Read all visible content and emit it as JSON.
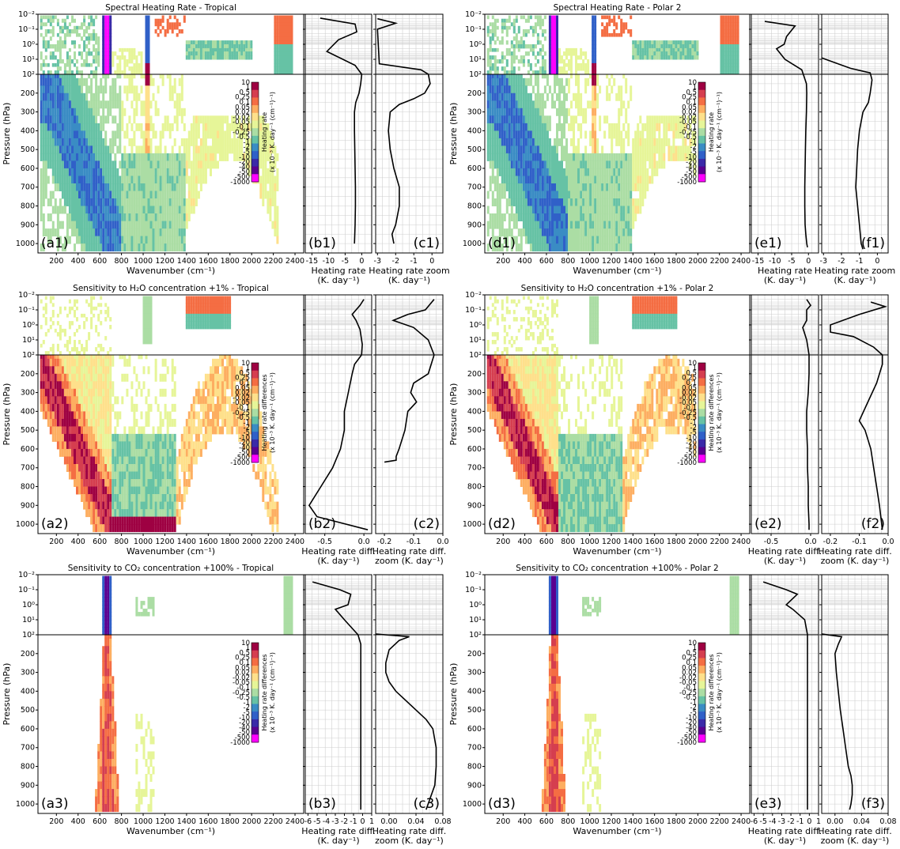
{
  "colormap": [
    "#ff00ff",
    "#5a0090",
    "#3a2aa8",
    "#3060c8",
    "#3a8cc4",
    "#66c2a5",
    "#abdda4",
    "#e6f598",
    "#fee08b",
    "#fdae61",
    "#f46d43",
    "#d53e4f",
    "#9e0142"
  ],
  "colorbar_ticks": [
    "10",
    "1",
    "0.5",
    "0.25",
    "0.1",
    "0.05",
    "0.02",
    "-0.02",
    "-0.05",
    "-0.1",
    "-0.25",
    "-0.5",
    "-1",
    "-2",
    "-5",
    "-10",
    "-20",
    "-40",
    "-50",
    "-500",
    "-1000"
  ],
  "colorbar_labels": {
    "heating": [
      "Heating rate",
      "(x 10⁻³ K. day⁻¹ (cm⁻¹)⁻¹)"
    ],
    "diff": [
      "Heating rate differences",
      "(x 10⁻³ K. day⁻¹ (cm⁻¹)⁻¹)"
    ]
  },
  "common": {
    "ylabel": "Pressure (hPa)",
    "xlabel": "Wavenumber (cm⁻¹)",
    "pressure_ticks_top": [
      "10⁻²",
      "10⁻¹",
      "10⁰",
      "10¹",
      "10²"
    ],
    "pressure_ticks_bottom": [
      "200",
      "300",
      "400",
      "500",
      "600",
      "700",
      "800",
      "900",
      "1000"
    ],
    "wavenumber_ticks": [
      "200",
      "400",
      "600",
      "800",
      "1000",
      "1200",
      "1400",
      "1600",
      "1800",
      "2000",
      "2200",
      "2400"
    ]
  },
  "chart_data": [
    {
      "type": "heatmap",
      "panel": "a1",
      "title": "Spectral Heating Rate - Tropical",
      "colorbar": "heating",
      "case": "tropical",
      "variant": "base"
    },
    {
      "type": "heatmap",
      "panel": "d1",
      "title": "Spectral Heating Rate - Polar 2",
      "colorbar": "heating",
      "case": "polar",
      "variant": "base"
    },
    {
      "type": "heatmap",
      "panel": "a2",
      "title": "Sensitivity to H₂O concentration +1% - Tropical",
      "colorbar": "diff",
      "case": "tropical",
      "variant": "h2o"
    },
    {
      "type": "heatmap",
      "panel": "d2",
      "title": "Sensitivity to H₂O concentration +1% - Polar 2",
      "colorbar": "diff",
      "case": "polar",
      "variant": "h2o"
    },
    {
      "type": "heatmap",
      "panel": "a3",
      "title": "Sensitivity to CO₂ concentration +100% - Tropical",
      "colorbar": "diff",
      "case": "tropical",
      "variant": "co2"
    },
    {
      "type": "heatmap",
      "panel": "d3",
      "title": "Sensitivity to CO₂ concentration +100% - Polar 2",
      "colorbar": "diff",
      "case": "polar",
      "variant": "co2"
    },
    {
      "type": "line",
      "panel": "b1",
      "xlabel": [
        "Heating rate",
        "(K. day⁻¹)"
      ],
      "xticks": [
        "-15",
        "-10",
        "-5",
        "0"
      ],
      "xlim": [
        -17,
        3
      ],
      "x": [
        -12.5,
        -2,
        -1.5,
        -7,
        -10.5,
        -2,
        0,
        -0.3,
        -0.8,
        -1.8,
        -2.2,
        -2.2,
        -2.1,
        -2.0,
        -1.9,
        -1.9,
        -2.0,
        -2.2
      ],
      "y": [
        0.018,
        0.045,
        0.15,
        0.5,
        3,
        25,
        100,
        150,
        200,
        250,
        300,
        400,
        500,
        600,
        700,
        800,
        900,
        1000
      ]
    },
    {
      "type": "line",
      "panel": "c1",
      "xlabel": [
        "Heating rate zoom",
        "(K. day⁻¹)"
      ],
      "xticks": [
        "-3",
        "-2",
        "-1",
        "0"
      ],
      "xlim": [
        -3.1,
        0.6
      ],
      "x": [
        -3.0,
        -2.0,
        -3.0,
        -2.9,
        -0.6,
        -0.2,
        -0.1,
        -0.4,
        -1.0,
        -1.8,
        -2.3,
        -2.4,
        -2.3,
        -2.1,
        -1.8,
        -1.8,
        -2.0,
        -2.2,
        -2.1
      ],
      "y": [
        0.02,
        0.04,
        0.1,
        20,
        50,
        100,
        150,
        200,
        230,
        260,
        300,
        400,
        500,
        600,
        700,
        800,
        900,
        950,
        1000
      ]
    },
    {
      "type": "line",
      "panel": "e1",
      "xlabel": [
        "Heating rate",
        "(K. day⁻¹)"
      ],
      "xticks": [
        "-15",
        "-10",
        "-5",
        "0"
      ],
      "xlim": [
        -17,
        3
      ],
      "x": [
        -13,
        -4,
        -6.5,
        -7.2,
        -9.5,
        -7,
        -2,
        -0.6,
        -0.5,
        -0.6,
        -0.8,
        -0.9,
        -1.0,
        -1.1,
        -1.1,
        -1.0,
        -0.8,
        -0.5,
        -0.3
      ],
      "y": [
        0.03,
        0.06,
        0.3,
        1,
        2,
        10,
        50,
        150,
        200,
        300,
        400,
        500,
        600,
        700,
        800,
        900,
        950,
        1000,
        1020
      ]
    },
    {
      "type": "line",
      "panel": "f1",
      "xlabel": [
        "Heating rate zoom",
        "(K. day⁻¹)"
      ],
      "xticks": [
        "-3",
        "-2",
        "-1",
        "0"
      ],
      "xlim": [
        -3.1,
        0.6
      ],
      "x": [
        -3.1,
        -1.5,
        -0.4,
        -0.3,
        -0.4,
        -0.5,
        -0.8,
        -1.0,
        -1.1,
        -1.15,
        -1.2,
        -1.1,
        -1.0,
        -0.9,
        -0.8
      ],
      "y": [
        8,
        40,
        80,
        130,
        200,
        250,
        300,
        400,
        500,
        600,
        700,
        800,
        900,
        1000,
        1030
      ]
    },
    {
      "type": "line",
      "panel": "b2",
      "xlabel": [
        "Heating rate diff.",
        "(K. day⁻¹)"
      ],
      "xticks": [
        "-0.5",
        "0.0"
      ],
      "xlim": [
        -0.75,
        0.1
      ],
      "x": [
        0.0,
        -0.05,
        -0.15,
        -0.1,
        -0.05,
        -0.02,
        -0.03,
        -0.12,
        -0.15,
        -0.2,
        -0.25,
        -0.25,
        -0.3,
        -0.4,
        -0.55,
        -0.7,
        -0.6,
        0.05
      ],
      "y": [
        0.02,
        0.05,
        0.2,
        0.5,
        2,
        20,
        100,
        150,
        200,
        300,
        400,
        500,
        600,
        700,
        800,
        900,
        960,
        1030
      ]
    },
    {
      "type": "line",
      "panel": "c2",
      "xlabel": [
        "Heating rate diff.",
        "zoom (K. day⁻¹)"
      ],
      "xticks": [
        "-0.2",
        "-0.1",
        "0.0"
      ],
      "xlim": [
        -0.23,
        0.0
      ],
      "x": [
        -0.03,
        -0.06,
        -0.12,
        -0.17,
        -0.1,
        -0.05,
        -0.03,
        -0.05,
        -0.1,
        -0.11,
        -0.09,
        -0.12,
        -0.13,
        -0.15,
        -0.16,
        -0.16,
        -0.2
      ],
      "y": [
        0.02,
        0.1,
        0.2,
        0.5,
        1.5,
        10,
        100,
        200,
        250,
        300,
        350,
        400,
        500,
        600,
        640,
        660,
        670
      ]
    },
    {
      "type": "line",
      "panel": "e2",
      "xlabel": [
        "Heating rate diff.",
        "(K. day⁻¹)"
      ],
      "xticks": [
        "-0.5",
        "0.0"
      ],
      "xlim": [
        -0.75,
        0.1
      ],
      "x": [
        -0.05,
        0.0,
        -0.05,
        -0.05,
        -0.1,
        -0.05,
        -0.02,
        -0.02,
        -0.03,
        -0.05,
        -0.05,
        -0.04,
        -0.04,
        -0.03,
        -0.03,
        -0.02,
        -0.02
      ],
      "y": [
        0.02,
        0.05,
        0.1,
        0.5,
        1.5,
        10,
        100,
        200,
        300,
        400,
        500,
        600,
        700,
        800,
        900,
        1000,
        1030
      ]
    },
    {
      "type": "line",
      "panel": "f2",
      "xlabel": [
        "Heating rate diff.",
        "zoom (K. day⁻¹)"
      ],
      "xticks": [
        "-0.2",
        "-0.1",
        "0.0"
      ],
      "xlim": [
        -0.23,
        0.0
      ],
      "x": [
        -0.06,
        -0.01,
        -0.1,
        -0.2,
        -0.2,
        -0.12,
        -0.05,
        -0.02,
        -0.02,
        -0.04,
        -0.07,
        -0.1,
        -0.08,
        -0.06,
        -0.05,
        -0.04,
        -0.03,
        -0.02
      ],
      "y": [
        0.03,
        0.06,
        0.2,
        1,
        3,
        6,
        30,
        100,
        150,
        250,
        350,
        450,
        500,
        600,
        700,
        800,
        900,
        1030
      ]
    },
    {
      "type": "line",
      "panel": "b3",
      "xlabel": [
        "Heating rate diff.",
        "(K. day⁻¹)"
      ],
      "xticks": [
        "-6",
        "-5",
        "-4",
        "-3",
        "-2",
        "-1",
        "0",
        "1"
      ],
      "xlim": [
        -6.3,
        1.0
      ],
      "x": [
        -5.5,
        -2.5,
        -1.3,
        -1.6,
        -3.0,
        -2.0,
        -0.5,
        -0.2,
        -0.2,
        -0.2,
        -0.2,
        -0.2,
        -0.2,
        -0.2,
        -0.2,
        -0.2
      ],
      "y": [
        0.03,
        0.1,
        0.2,
        1,
        2,
        10,
        100,
        150,
        300,
        400,
        500,
        600,
        700,
        800,
        900,
        1030
      ]
    },
    {
      "type": "line",
      "panel": "c3",
      "xlabel": [
        "Heating rate diff.",
        "zoom (K. day⁻¹)"
      ],
      "xticks": [
        "0.00",
        "0.04",
        "0.08"
      ],
      "xlim": [
        -0.02,
        0.08
      ],
      "x": [
        -0.02,
        0.03,
        0.015,
        0.0,
        -0.005,
        -0.005,
        0.0,
        0.01,
        0.025,
        0.04,
        0.055,
        0.065,
        0.07,
        0.07,
        0.068,
        0.062,
        0.055
      ],
      "y": [
        90,
        110,
        130,
        180,
        250,
        300,
        350,
        400,
        450,
        500,
        550,
        600,
        700,
        800,
        900,
        960,
        1030
      ]
    },
    {
      "type": "line",
      "panel": "e3",
      "xlabel": [
        "Heating rate diff.",
        "(K. day⁻¹)"
      ],
      "xticks": [
        "-6",
        "-5",
        "-4",
        "-3",
        "-2",
        "-1",
        "0",
        "1"
      ],
      "xlim": [
        -6.3,
        1.0
      ],
      "x": [
        -5.0,
        -2.5,
        -1.3,
        -2.5,
        -1.8,
        -0.5,
        -0.2,
        -0.2,
        -0.2,
        -0.2,
        -0.2,
        -0.2,
        -0.2,
        -0.2
      ],
      "y": [
        0.03,
        0.1,
        0.2,
        1,
        2,
        10,
        100,
        200,
        300,
        500,
        700,
        800,
        900,
        1030
      ]
    },
    {
      "type": "line",
      "panel": "f3",
      "xlabel": [
        "Heating rate diff.",
        "zoom (K. day⁻¹)"
      ],
      "xticks": [
        "0.00",
        "0.04",
        "0.08"
      ],
      "xlim": [
        -0.02,
        0.08
      ],
      "x": [
        -0.02,
        0.01,
        0.005,
        0.0,
        0.002,
        0.005,
        0.008,
        0.012,
        0.016,
        0.02,
        0.024,
        0.026,
        0.026,
        0.024,
        0.022
      ],
      "y": [
        90,
        110,
        150,
        200,
        300,
        400,
        500,
        600,
        700,
        800,
        850,
        900,
        950,
        1000,
        1030
      ]
    }
  ]
}
